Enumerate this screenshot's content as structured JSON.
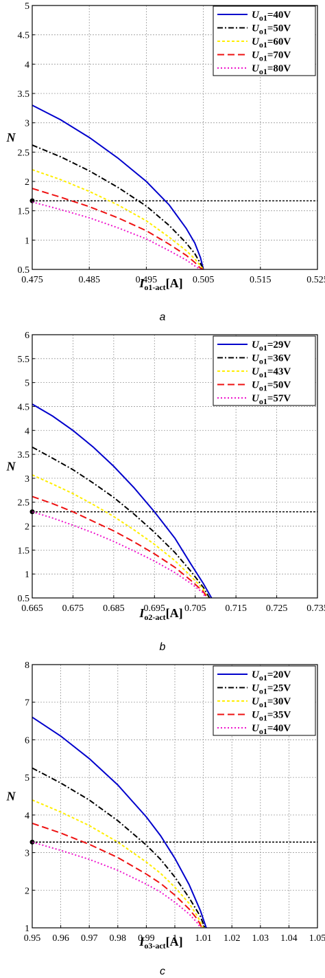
{
  "chart_data": [
    {
      "type": "line",
      "caption": "a",
      "ylabel": "N",
      "xlabel_main": "I",
      "xlabel_sub": "o1-act",
      "xlabel_unit": "[A]",
      "xlim": [
        0.475,
        0.525
      ],
      "ylim": [
        0.5,
        5
      ],
      "xticks": [
        "0.475",
        "0.485",
        "0.495",
        "0.505",
        "0.515",
        "0.525"
      ],
      "yticks": [
        "0.5",
        "1",
        "1.5",
        "2",
        "2.5",
        "3",
        "3.5",
        "4",
        "4.5",
        "5"
      ],
      "grid": true,
      "legend_position": "top-right",
      "reference_line": 1.67,
      "series": [
        {
          "name_main": "U",
          "name_sub": "o1",
          "name_val": "=40V",
          "color": "#0000cc",
          "dash": "",
          "x": [
            0.475,
            0.48,
            0.485,
            0.49,
            0.495,
            0.499,
            0.502,
            0.5035,
            0.5045,
            0.505
          ],
          "y": [
            3.3,
            3.05,
            2.75,
            2.4,
            2.0,
            1.6,
            1.2,
            0.95,
            0.7,
            0.5
          ]
        },
        {
          "name_main": "U",
          "name_sub": "o1",
          "name_val": "=50V",
          "color": "#000000",
          "dash": "8 3 2 3",
          "x": [
            0.475,
            0.48,
            0.485,
            0.49,
            0.495,
            0.499,
            0.502,
            0.5035,
            0.5045,
            0.505
          ],
          "y": [
            2.62,
            2.42,
            2.18,
            1.9,
            1.58,
            1.25,
            0.95,
            0.77,
            0.6,
            0.5
          ]
        },
        {
          "name_main": "U",
          "name_sub": "o1",
          "name_val": "=60V",
          "color": "#ffee00",
          "dash": "4 3",
          "x": [
            0.475,
            0.48,
            0.485,
            0.49,
            0.495,
            0.499,
            0.502,
            0.5035,
            0.5045,
            0.505
          ],
          "y": [
            2.2,
            2.03,
            1.83,
            1.6,
            1.33,
            1.05,
            0.82,
            0.68,
            0.56,
            0.5
          ]
        },
        {
          "name_main": "U",
          "name_sub": "o1",
          "name_val": "=70V",
          "color": "#ee1111",
          "dash": "10 5",
          "x": [
            0.475,
            0.48,
            0.485,
            0.49,
            0.495,
            0.499,
            0.502,
            0.5035,
            0.5045,
            0.505
          ],
          "y": [
            1.88,
            1.73,
            1.57,
            1.38,
            1.16,
            0.93,
            0.74,
            0.62,
            0.52,
            0.5
          ]
        },
        {
          "name_main": "U",
          "name_sub": "o1",
          "name_val": "=80V",
          "color": "#ee11cc",
          "dash": "2 3",
          "x": [
            0.475,
            0.48,
            0.485,
            0.49,
            0.495,
            0.499,
            0.502,
            0.5035,
            0.5045
          ],
          "y": [
            1.65,
            1.52,
            1.38,
            1.21,
            1.02,
            0.82,
            0.66,
            0.56,
            0.5
          ]
        }
      ]
    },
    {
      "type": "line",
      "caption": "b",
      "ylabel": "N",
      "xlabel_main": "I",
      "xlabel_sub": "o2-act",
      "xlabel_unit": "[A]",
      "xlim": [
        0.665,
        0.735
      ],
      "ylim": [
        0.5,
        6
      ],
      "xticks": [
        "0.665",
        "0.675",
        "0.685",
        "0.695",
        "0.705",
        "0.715",
        "0.725",
        "0.735"
      ],
      "yticks": [
        "0.5",
        "1",
        "1.5",
        "2",
        "2.5",
        "3",
        "3.5",
        "4",
        "4.5",
        "5",
        "5.5",
        "6"
      ],
      "grid": true,
      "legend_position": "top-right",
      "reference_line": 2.3,
      "series": [
        {
          "name_main": "U",
          "name_sub": "o1",
          "name_val": "=29V",
          "color": "#0000cc",
          "dash": "",
          "x": [
            0.665,
            0.67,
            0.675,
            0.68,
            0.685,
            0.69,
            0.695,
            0.7,
            0.704,
            0.707,
            0.709
          ],
          "y": [
            4.55,
            4.3,
            4.0,
            3.65,
            3.25,
            2.8,
            2.3,
            1.75,
            1.2,
            0.8,
            0.5
          ]
        },
        {
          "name_main": "U",
          "name_sub": "o1",
          "name_val": "=36V",
          "color": "#000000",
          "dash": "8 3 2 3",
          "x": [
            0.665,
            0.67,
            0.675,
            0.68,
            0.685,
            0.69,
            0.695,
            0.7,
            0.704,
            0.707,
            0.7085
          ],
          "y": [
            3.65,
            3.42,
            3.18,
            2.9,
            2.6,
            2.25,
            1.87,
            1.45,
            1.05,
            0.72,
            0.5
          ]
        },
        {
          "name_main": "U",
          "name_sub": "o1",
          "name_val": "=43V",
          "color": "#ffee00",
          "dash": "4 3",
          "x": [
            0.665,
            0.67,
            0.675,
            0.68,
            0.685,
            0.69,
            0.695,
            0.7,
            0.704,
            0.707,
            0.708
          ],
          "y": [
            3.07,
            2.88,
            2.68,
            2.45,
            2.2,
            1.92,
            1.62,
            1.28,
            0.95,
            0.68,
            0.5
          ]
        },
        {
          "name_main": "U",
          "name_sub": "o1",
          "name_val": "=50V",
          "color": "#ee1111",
          "dash": "10 5",
          "x": [
            0.665,
            0.67,
            0.675,
            0.68,
            0.685,
            0.69,
            0.695,
            0.7,
            0.704,
            0.707,
            0.708
          ],
          "y": [
            2.62,
            2.47,
            2.3,
            2.1,
            1.9,
            1.67,
            1.42,
            1.14,
            0.86,
            0.63,
            0.5
          ]
        },
        {
          "name_main": "U",
          "name_sub": "o1",
          "name_val": "=57V",
          "color": "#ee11cc",
          "dash": "2 3",
          "x": [
            0.665,
            0.67,
            0.675,
            0.68,
            0.685,
            0.69,
            0.695,
            0.7,
            0.704,
            0.707,
            0.7075
          ],
          "y": [
            2.3,
            2.17,
            2.02,
            1.86,
            1.68,
            1.48,
            1.27,
            1.03,
            0.8,
            0.6,
            0.5
          ]
        }
      ]
    },
    {
      "type": "line",
      "caption": "c",
      "ylabel": "N",
      "xlabel_main": "I",
      "xlabel_sub": "o3-act",
      "xlabel_unit": "[A]",
      "xlim": [
        0.95,
        1.05
      ],
      "ylim": [
        1,
        8
      ],
      "xticks": [
        "0.95",
        "0.96",
        "0.97",
        "0.98",
        "0.99",
        "1",
        "1.01",
        "1.02",
        "1.03",
        "1.04",
        "1.05"
      ],
      "yticks": [
        "1",
        "2",
        "3",
        "4",
        "5",
        "6",
        "7",
        "8"
      ],
      "grid": true,
      "legend_position": "top-right",
      "reference_line": 3.28,
      "series": [
        {
          "name_main": "U",
          "name_sub": "o1",
          "name_val": "=20V",
          "color": "#0000cc",
          "dash": "",
          "x": [
            0.95,
            0.96,
            0.97,
            0.98,
            0.99,
            0.995,
            1.0,
            1.005,
            1.009,
            1.011
          ],
          "y": [
            6.6,
            6.1,
            5.5,
            4.8,
            3.95,
            3.45,
            2.85,
            2.15,
            1.45,
            1.0
          ]
        },
        {
          "name_main": "U",
          "name_sub": "o1",
          "name_val": "=25V",
          "color": "#000000",
          "dash": "8 3 2 3",
          "x": [
            0.95,
            0.96,
            0.97,
            0.98,
            0.99,
            0.995,
            1.0,
            1.005,
            1.009,
            1.0105
          ],
          "y": [
            5.25,
            4.85,
            4.4,
            3.85,
            3.2,
            2.82,
            2.35,
            1.8,
            1.3,
            1.0
          ]
        },
        {
          "name_main": "U",
          "name_sub": "o1",
          "name_val": "=30V",
          "color": "#ffee00",
          "dash": "4 3",
          "x": [
            0.95,
            0.96,
            0.97,
            0.98,
            0.99,
            0.995,
            1.0,
            1.005,
            1.008,
            1.01
          ],
          "y": [
            4.4,
            4.08,
            3.72,
            3.28,
            2.75,
            2.45,
            2.08,
            1.65,
            1.3,
            1.0
          ]
        },
        {
          "name_main": "U",
          "name_sub": "o1",
          "name_val": "=35V",
          "color": "#ee1111",
          "dash": "10 5",
          "x": [
            0.95,
            0.96,
            0.97,
            0.98,
            0.99,
            0.995,
            1.0,
            1.005,
            1.008,
            1.0095
          ],
          "y": [
            3.78,
            3.52,
            3.22,
            2.87,
            2.43,
            2.18,
            1.87,
            1.5,
            1.22,
            1.0
          ]
        },
        {
          "name_main": "U",
          "name_sub": "o1",
          "name_val": "=40V",
          "color": "#ee11cc",
          "dash": "2 3",
          "x": [
            0.95,
            0.96,
            0.97,
            0.98,
            0.99,
            0.995,
            1.0,
            1.005,
            1.008,
            1.009
          ],
          "y": [
            3.28,
            3.06,
            2.82,
            2.53,
            2.16,
            1.95,
            1.68,
            1.37,
            1.12,
            1.0
          ]
        }
      ]
    }
  ]
}
